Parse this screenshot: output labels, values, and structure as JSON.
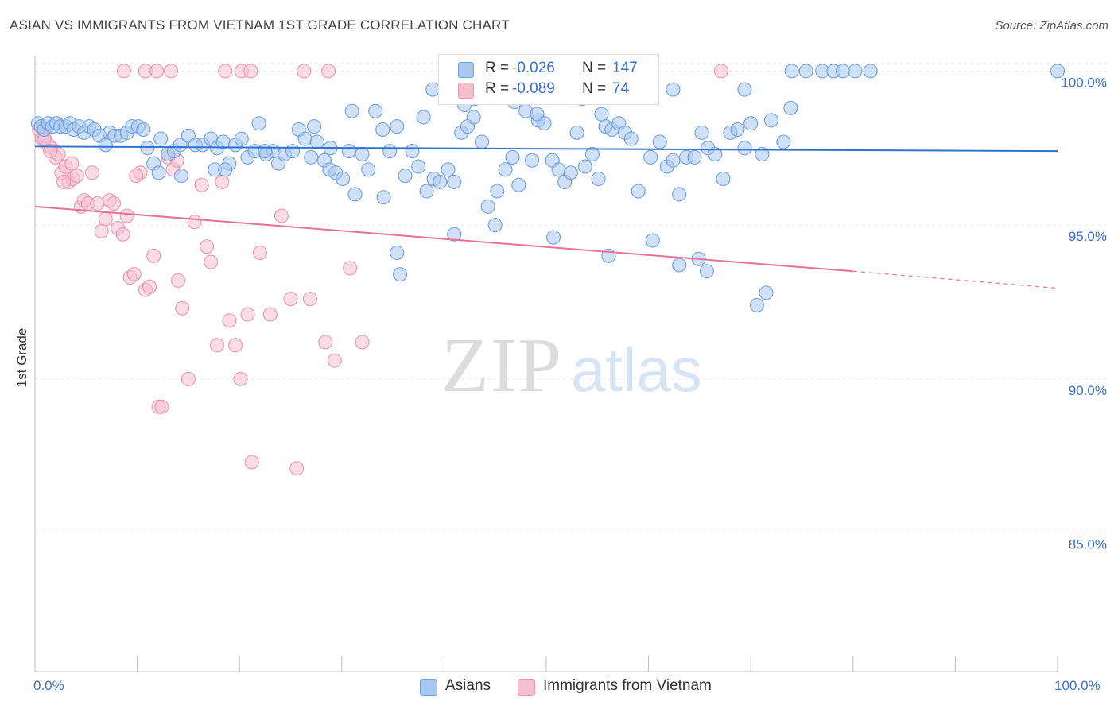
{
  "title": "ASIAN VS IMMIGRANTS FROM VIETNAM 1ST GRADE CORRELATION CHART",
  "source": "Source: ZipAtlas.com",
  "watermark": "ZIPatlas",
  "colors": {
    "asian_fill": "#a9c8f0",
    "asian_stroke": "#6c9fe0",
    "asian_line": "#2f74d0",
    "vietnam_fill": "#f6bfd0",
    "vietnam_stroke": "#ee93b0",
    "vietnam_line": "#e8709a",
    "accent_text": "#3a6fd8"
  },
  "legend_top": {
    "rows": [
      {
        "r_label": "R =",
        "r_value": "-0.026",
        "n_label": "N =",
        "n_value": "147"
      },
      {
        "r_label": "R =",
        "r_value": "-0.089",
        "n_label": "N =",
        "n_value": "74"
      }
    ]
  },
  "legend_bottom": {
    "items": [
      {
        "label": "Asians"
      },
      {
        "label": "Immigrants from Vietnam"
      }
    ]
  },
  "chart_data": {
    "type": "scatter",
    "title": "ASIAN VS IMMIGRANTS FROM VIETNAM 1ST GRADE CORRELATION CHART",
    "xlabel": "",
    "ylabel": "1st Grade",
    "xlim": [
      0,
      100
    ],
    "ylim": [
      80.5,
      100.5
    ],
    "x_tick_labels": [
      "0.0%",
      "100.0%"
    ],
    "y_ticks": [
      85,
      90,
      95,
      100
    ],
    "y_tick_labels": [
      "85.0%",
      "90.0%",
      "95.0%",
      "100.0%"
    ],
    "grid": true,
    "legend_position": "bottom",
    "series": [
      {
        "name": "Asians",
        "r": -0.026,
        "n": 147,
        "trend": {
          "x0": 0,
          "y0": 97.55,
          "x1": 100,
          "y1": 97.4
        },
        "points": [
          [
            0.3,
            98.3
          ],
          [
            0.6,
            98.2
          ],
          [
            0.9,
            98.1
          ],
          [
            1.3,
            98.3
          ],
          [
            1.7,
            98.2
          ],
          [
            2.1,
            98.3
          ],
          [
            2.5,
            98.2
          ],
          [
            3.0,
            98.2
          ],
          [
            3.4,
            98.3
          ],
          [
            3.8,
            98.1
          ],
          [
            4.3,
            98.2
          ],
          [
            4.8,
            98.0
          ],
          [
            5.3,
            98.2
          ],
          [
            5.8,
            98.1
          ],
          [
            6.3,
            97.9
          ],
          [
            6.9,
            97.6
          ],
          [
            7.3,
            98.0
          ],
          [
            7.8,
            97.9
          ],
          [
            8.4,
            97.9
          ],
          [
            9.0,
            98.0
          ],
          [
            9.5,
            98.2
          ],
          [
            10.1,
            98.2
          ],
          [
            10.6,
            98.1
          ],
          [
            11.0,
            97.5
          ],
          [
            11.6,
            97.0
          ],
          [
            12.3,
            97.8
          ],
          [
            13.0,
            97.3
          ],
          [
            13.6,
            97.4
          ],
          [
            14.2,
            97.6
          ],
          [
            15.0,
            97.9
          ],
          [
            15.7,
            97.6
          ],
          [
            16.4,
            97.6
          ],
          [
            17.2,
            97.8
          ],
          [
            17.8,
            97.5
          ],
          [
            18.4,
            97.7
          ],
          [
            19.0,
            97.0
          ],
          [
            19.6,
            97.6
          ],
          [
            20.2,
            97.8
          ],
          [
            20.8,
            97.2
          ],
          [
            21.5,
            97.4
          ],
          [
            21.9,
            98.3
          ],
          [
            22.6,
            97.3
          ],
          [
            23.3,
            97.4
          ],
          [
            23.8,
            97.0
          ],
          [
            24.4,
            97.3
          ],
          [
            25.2,
            97.4
          ],
          [
            25.8,
            98.1
          ],
          [
            26.4,
            97.8
          ],
          [
            27.0,
            97.2
          ],
          [
            27.6,
            97.7
          ],
          [
            28.3,
            97.1
          ],
          [
            28.9,
            97.5
          ],
          [
            29.4,
            96.7
          ],
          [
            30.1,
            96.5
          ],
          [
            30.7,
            97.4
          ],
          [
            31.3,
            96.0
          ],
          [
            32.0,
            97.3
          ],
          [
            32.6,
            96.8
          ],
          [
            33.3,
            98.7
          ],
          [
            34.0,
            98.1
          ],
          [
            34.7,
            97.4
          ],
          [
            35.4,
            98.2
          ],
          [
            36.2,
            96.6
          ],
          [
            36.9,
            97.4
          ],
          [
            37.5,
            96.9
          ],
          [
            38.3,
            96.1
          ],
          [
            39.0,
            96.5
          ],
          [
            39.6,
            96.4
          ],
          [
            40.4,
            96.8
          ],
          [
            41.0,
            96.4
          ],
          [
            41.7,
            98.0
          ],
          [
            42.3,
            98.2
          ],
          [
            42.9,
            98.5
          ],
          [
            43.7,
            97.7
          ],
          [
            44.3,
            95.6
          ],
          [
            45.2,
            96.1
          ],
          [
            46.0,
            96.8
          ],
          [
            46.7,
            97.2
          ],
          [
            47.3,
            96.3
          ],
          [
            48.0,
            98.7
          ],
          [
            48.6,
            97.1
          ],
          [
            49.2,
            98.4
          ],
          [
            49.8,
            98.3
          ],
          [
            50.6,
            97.1
          ],
          [
            51.2,
            96.8
          ],
          [
            51.8,
            96.4
          ],
          [
            52.4,
            96.7
          ],
          [
            53.0,
            98.0
          ],
          [
            53.8,
            96.9
          ],
          [
            54.5,
            97.3
          ],
          [
            55.1,
            96.5
          ],
          [
            55.8,
            98.2
          ],
          [
            56.4,
            98.1
          ],
          [
            57.1,
            98.3
          ],
          [
            57.7,
            98.0
          ],
          [
            58.3,
            97.8
          ],
          [
            59.0,
            96.1
          ],
          [
            60.2,
            97.2
          ],
          [
            61.1,
            97.7
          ],
          [
            61.8,
            96.9
          ],
          [
            62.4,
            97.1
          ],
          [
            63.0,
            96.0
          ],
          [
            63.7,
            97.2
          ],
          [
            64.5,
            97.2
          ],
          [
            65.2,
            98.0
          ],
          [
            65.8,
            97.5
          ],
          [
            66.5,
            97.3
          ],
          [
            67.3,
            96.5
          ],
          [
            68.0,
            98.0
          ],
          [
            68.7,
            98.1
          ],
          [
            69.4,
            97.5
          ],
          [
            70.0,
            98.3
          ],
          [
            71.1,
            97.3
          ],
          [
            72.0,
            98.4
          ],
          [
            73.2,
            97.7
          ],
          [
            74.0,
            100.0
          ],
          [
            75.4,
            100.0
          ],
          [
            77.0,
            100.0
          ],
          [
            78.1,
            100.0
          ],
          [
            79.0,
            100.0
          ],
          [
            80.2,
            100.0
          ],
          [
            81.7,
            100.0
          ],
          [
            100.0,
            100.0
          ],
          [
            73.9,
            98.8
          ],
          [
            69.4,
            99.4
          ],
          [
            62.4,
            99.4
          ],
          [
            53.5,
            99.1
          ],
          [
            49.2,
            99.2
          ],
          [
            43.0,
            99.1
          ],
          [
            38.9,
            99.4
          ],
          [
            34.1,
            95.9
          ],
          [
            35.4,
            94.1
          ],
          [
            35.7,
            93.4
          ],
          [
            41.0,
            94.7
          ],
          [
            45.0,
            95.0
          ],
          [
            50.7,
            94.6
          ],
          [
            56.1,
            94.0
          ],
          [
            60.4,
            94.5
          ],
          [
            65.7,
            93.5
          ],
          [
            63.0,
            93.7
          ],
          [
            70.6,
            92.4
          ],
          [
            71.5,
            92.8
          ],
          [
            64.9,
            93.9
          ],
          [
            42.0,
            98.9
          ],
          [
            46.9,
            99.0
          ],
          [
            49.1,
            98.6
          ],
          [
            31.0,
            98.7
          ],
          [
            55.4,
            98.6
          ],
          [
            58.1,
            99.3
          ],
          [
            27.3,
            98.2
          ],
          [
            38.0,
            98.5
          ],
          [
            12.1,
            96.7
          ],
          [
            14.3,
            96.6
          ],
          [
            17.6,
            96.8
          ],
          [
            18.6,
            96.8
          ],
          [
            22.5,
            97.4
          ],
          [
            28.8,
            96.8
          ]
        ]
      },
      {
        "name": "Immigrants from Vietnam",
        "r": -0.089,
        "n": 74,
        "trend": {
          "x0": 0,
          "y0": 95.6,
          "x1": 80,
          "y1": 93.5,
          "dashed_to": {
            "x": 100,
            "y": 92.95
          }
        },
        "points": [
          [
            0.4,
            98.1
          ],
          [
            0.7,
            97.8
          ],
          [
            1.0,
            97.9
          ],
          [
            1.3,
            97.6
          ],
          [
            1.6,
            97.5
          ],
          [
            2.0,
            97.2
          ],
          [
            2.3,
            97.3
          ],
          [
            2.6,
            96.7
          ],
          [
            3.0,
            96.9
          ],
          [
            3.3,
            96.4
          ],
          [
            3.7,
            96.5
          ],
          [
            4.1,
            96.6
          ],
          [
            4.5,
            95.6
          ],
          [
            4.8,
            95.8
          ],
          [
            5.2,
            95.7
          ],
          [
            5.6,
            96.7
          ],
          [
            6.1,
            95.7
          ],
          [
            6.5,
            94.8
          ],
          [
            6.9,
            95.2
          ],
          [
            7.3,
            95.8
          ],
          [
            7.7,
            95.7
          ],
          [
            8.1,
            94.9
          ],
          [
            8.6,
            94.7
          ],
          [
            9.0,
            95.3
          ],
          [
            9.3,
            93.3
          ],
          [
            9.7,
            93.4
          ],
          [
            10.3,
            96.7
          ],
          [
            10.8,
            92.9
          ],
          [
            11.2,
            93.0
          ],
          [
            11.6,
            94.0
          ],
          [
            12.1,
            89.1
          ],
          [
            12.4,
            89.1
          ],
          [
            13.0,
            97.2
          ],
          [
            13.5,
            96.8
          ],
          [
            14.0,
            93.2
          ],
          [
            14.4,
            92.3
          ],
          [
            15.0,
            90.0
          ],
          [
            15.6,
            95.1
          ],
          [
            16.3,
            96.3
          ],
          [
            16.8,
            94.3
          ],
          [
            17.2,
            93.8
          ],
          [
            17.8,
            91.1
          ],
          [
            18.3,
            96.4
          ],
          [
            19.0,
            91.9
          ],
          [
            19.6,
            91.1
          ],
          [
            20.1,
            90.0
          ],
          [
            20.8,
            92.1
          ],
          [
            21.2,
            87.3
          ],
          [
            22.0,
            94.1
          ],
          [
            23.0,
            92.1
          ],
          [
            24.1,
            95.3
          ],
          [
            25.0,
            92.6
          ],
          [
            25.6,
            87.1
          ],
          [
            26.9,
            92.6
          ],
          [
            28.4,
            91.2
          ],
          [
            29.3,
            90.6
          ],
          [
            30.8,
            93.6
          ],
          [
            32.0,
            91.2
          ],
          [
            8.7,
            100.0
          ],
          [
            10.8,
            100.0
          ],
          [
            11.9,
            100.0
          ],
          [
            13.3,
            100.0
          ],
          [
            18.6,
            100.0
          ],
          [
            20.2,
            100.0
          ],
          [
            21.1,
            100.0
          ],
          [
            26.3,
            100.0
          ],
          [
            28.7,
            100.0
          ],
          [
            67.1,
            100.0
          ],
          [
            0.9,
            97.8
          ],
          [
            1.5,
            97.4
          ],
          [
            2.8,
            96.4
          ],
          [
            3.6,
            97.0
          ],
          [
            9.9,
            96.6
          ],
          [
            13.9,
            97.1
          ]
        ]
      }
    ]
  }
}
